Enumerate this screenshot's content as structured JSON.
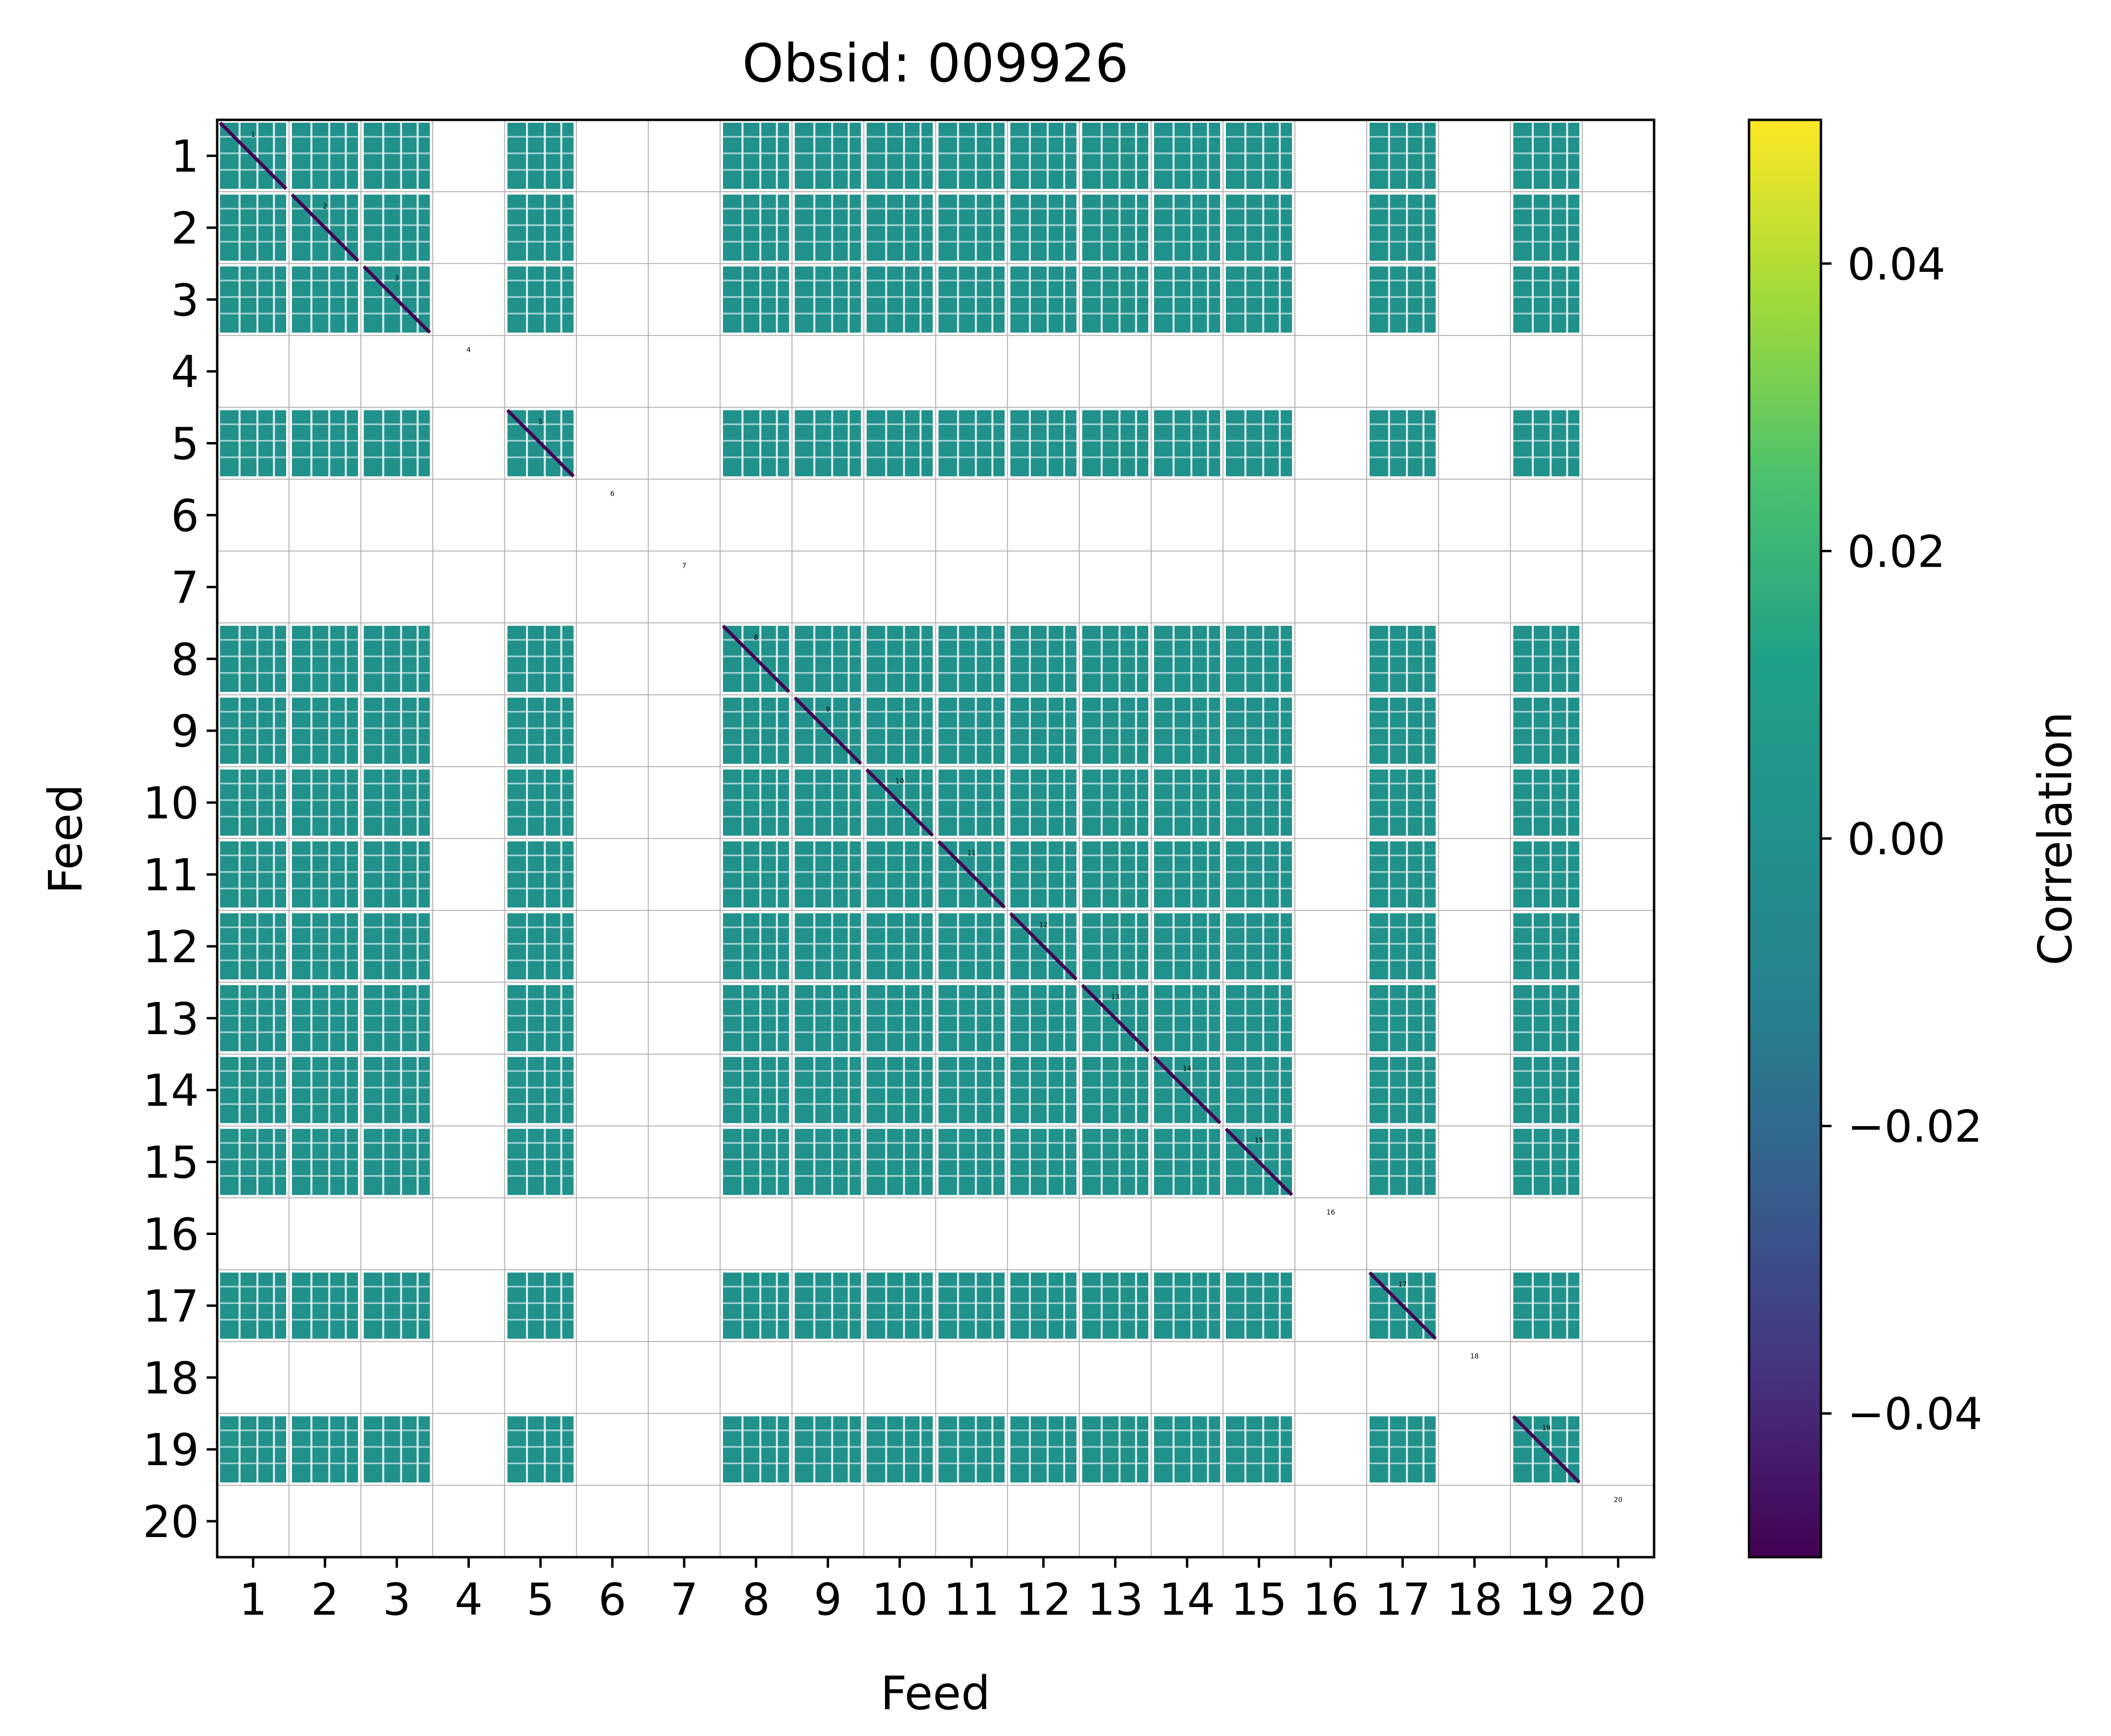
{
  "chart_data": {
    "type": "heatmap",
    "title": "Obsid: 009926",
    "xlabel": "Feed",
    "ylabel": "Feed",
    "colorbar_label": "Correlation",
    "colorbar_range": [
      -0.05,
      0.05
    ],
    "colorbar_ticks": [
      {
        "value": 0.04,
        "label": "0.04"
      },
      {
        "value": 0.02,
        "label": "0.02"
      },
      {
        "value": 0.0,
        "label": "0.00"
      },
      {
        "value": -0.02,
        "label": "−0.02"
      },
      {
        "value": -0.04,
        "label": "−0.04"
      }
    ],
    "colormap": "viridis",
    "feeds": [
      "1",
      "2",
      "3",
      "4",
      "5",
      "6",
      "7",
      "8",
      "9",
      "10",
      "11",
      "12",
      "13",
      "14",
      "15",
      "16",
      "17",
      "18",
      "19",
      "20"
    ],
    "active_feeds": [
      1,
      2,
      3,
      5,
      8,
      9,
      10,
      11,
      12,
      13,
      14,
      15,
      17,
      19
    ],
    "inactive_feeds": [
      4,
      6,
      7,
      16,
      18,
      20
    ],
    "block_value": 0.0,
    "diagonal_value": -0.045,
    "grid": true
  },
  "colors": {
    "block": "#21918c",
    "diagonal": "#440154",
    "grid": "#b0b0b0",
    "axis": "#000000"
  }
}
